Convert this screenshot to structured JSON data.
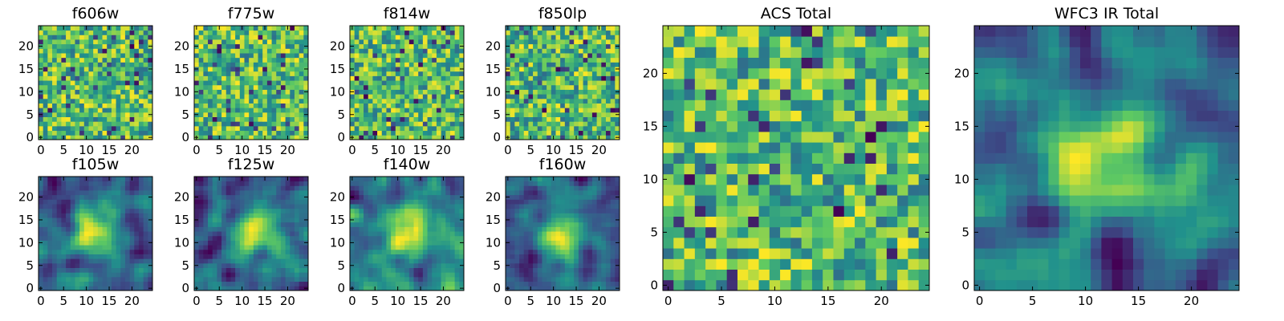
{
  "chart_data": [
    {
      "type": "heatmap",
      "title": "f606w",
      "xlim": [
        0,
        24
      ],
      "ylim": [
        0,
        24
      ],
      "xticks": [
        "0",
        "5",
        "10",
        "15",
        "20"
      ],
      "yticks": [
        "0",
        "5",
        "10",
        "15",
        "20"
      ],
      "grid": false,
      "colormap": "viridis",
      "style": "noisy"
    },
    {
      "type": "heatmap",
      "title": "f775w",
      "xlim": [
        0,
        24
      ],
      "ylim": [
        0,
        24
      ],
      "xticks": [
        "0",
        "5",
        "10",
        "15",
        "20"
      ],
      "yticks": [
        "0",
        "5",
        "10",
        "15",
        "20"
      ],
      "grid": false,
      "colormap": "viridis",
      "style": "noisy"
    },
    {
      "type": "heatmap",
      "title": "f814w",
      "xlim": [
        0,
        24
      ],
      "ylim": [
        0,
        24
      ],
      "xticks": [
        "0",
        "5",
        "10",
        "15",
        "20"
      ],
      "yticks": [
        "0",
        "5",
        "10",
        "15",
        "20"
      ],
      "grid": false,
      "colormap": "viridis",
      "style": "noisy"
    },
    {
      "type": "heatmap",
      "title": "f850lp",
      "xlim": [
        0,
        24
      ],
      "ylim": [
        0,
        24
      ],
      "xticks": [
        "0",
        "5",
        "10",
        "15",
        "20"
      ],
      "yticks": [
        "0",
        "5",
        "10",
        "15",
        "20"
      ],
      "grid": false,
      "colormap": "viridis",
      "style": "noisy"
    },
    {
      "type": "heatmap",
      "title": "f105w",
      "xlim": [
        0,
        24
      ],
      "ylim": [
        0,
        24
      ],
      "xticks": [
        "0",
        "5",
        "10",
        "15",
        "20"
      ],
      "yticks": [
        "0",
        "5",
        "10",
        "15",
        "20"
      ],
      "grid": false,
      "colormap": "viridis",
      "style": "smooth"
    },
    {
      "type": "heatmap",
      "title": "f125w",
      "xlim": [
        0,
        24
      ],
      "ylim": [
        0,
        24
      ],
      "xticks": [
        "0",
        "5",
        "10",
        "15",
        "20"
      ],
      "yticks": [
        "0",
        "5",
        "10",
        "15",
        "20"
      ],
      "grid": false,
      "colormap": "viridis",
      "style": "smooth"
    },
    {
      "type": "heatmap",
      "title": "f140w",
      "xlim": [
        0,
        24
      ],
      "ylim": [
        0,
        24
      ],
      "xticks": [
        "0",
        "5",
        "10",
        "15",
        "20"
      ],
      "yticks": [
        "0",
        "5",
        "10",
        "15",
        "20"
      ],
      "grid": false,
      "colormap": "viridis",
      "style": "smooth"
    },
    {
      "type": "heatmap",
      "title": "f160w",
      "xlim": [
        0,
        24
      ],
      "ylim": [
        0,
        24
      ],
      "xticks": [
        "0",
        "5",
        "10",
        "15",
        "20"
      ],
      "yticks": [
        "0",
        "5",
        "10",
        "15",
        "20"
      ],
      "grid": false,
      "colormap": "viridis",
      "style": "smooth"
    },
    {
      "type": "heatmap",
      "title": "ACS Total",
      "xlim": [
        0,
        24
      ],
      "ylim": [
        0,
        24
      ],
      "xticks": [
        "0",
        "5",
        "10",
        "15",
        "20"
      ],
      "yticks": [
        "0",
        "5",
        "10",
        "15",
        "20"
      ],
      "grid": false,
      "colormap": "viridis",
      "style": "noisy"
    },
    {
      "type": "heatmap",
      "title": "WFC3 IR Total",
      "xlim": [
        0,
        24
      ],
      "ylim": [
        0,
        24
      ],
      "xticks": [
        "0",
        "5",
        "10",
        "15",
        "20"
      ],
      "yticks": [
        "0",
        "5",
        "10",
        "15",
        "20"
      ],
      "grid": false,
      "colormap": "viridis",
      "style": "smooth"
    }
  ],
  "colors": {
    "viridis": [
      "#440154",
      "#3b528b",
      "#21918c",
      "#5ec962",
      "#fde725"
    ]
  }
}
